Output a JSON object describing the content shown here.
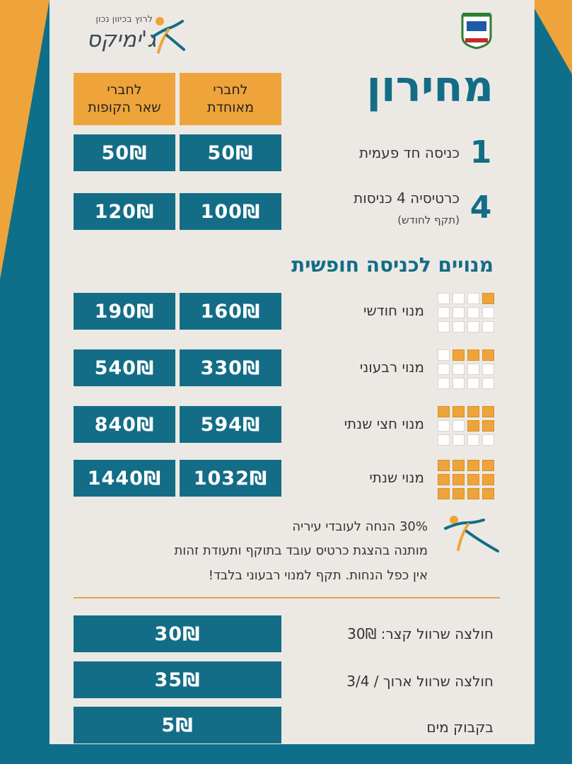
{
  "logo": {
    "tagline": "לרוץ בכיוון נכון",
    "name": "ג'ימיקס"
  },
  "title": "מחירון",
  "headers": {
    "members_union": "לחברי\nמאוחדת",
    "members_other": "לחברי\nשאר הקופות"
  },
  "entries": [
    {
      "num": "1",
      "label": "כניסה חד פעמית",
      "sub": "",
      "union": "50₪",
      "other": "50₪"
    },
    {
      "num": "4",
      "label": "כרטיסיה 4 כניסות",
      "sub": "(תקף לחודש)",
      "union": "100₪",
      "other": "120₪"
    }
  ],
  "subs_title": "מנויים לכניסה חופשית",
  "subscriptions": [
    {
      "label": "מנוי חודשי",
      "union": "160₪",
      "other": "190₪",
      "months_highlighted": 1
    },
    {
      "label": "מנוי רבעוני",
      "union": "330₪",
      "other": "540₪",
      "months_highlighted": 3
    },
    {
      "label": "מנוי חצי שנתי",
      "union": "594₪",
      "other": "840₪",
      "months_highlighted": 6
    },
    {
      "label": "מנוי שנתי",
      "union": "1032₪",
      "other": "1440₪",
      "months_highlighted": 12
    }
  ],
  "discount_notes": [
    "30% הנחה לעובדי עיריה",
    "מותנה בהצגת כרטיס עובד בתוקף ותעודת זהות",
    "אין כפל הנחות. תקף למנוי רבעוני בלבד!"
  ],
  "extras": [
    {
      "label": "חולצה שרוול קצר: 30₪",
      "price": "30₪"
    },
    {
      "label": "חולצה שרוול ארוך / 3/4",
      "price": "35₪"
    },
    {
      "label": "בקבוק מים",
      "price": "5₪"
    }
  ],
  "colors": {
    "teal": "#136d86",
    "orange": "#eea43a",
    "panel": "#ece9e4"
  }
}
